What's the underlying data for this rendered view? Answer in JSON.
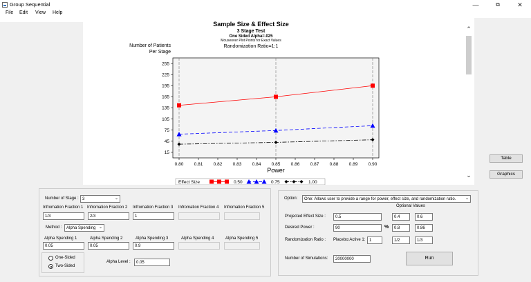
{
  "window": {
    "title": "Group Sequential",
    "icon": "app-icon"
  },
  "menu": [
    "File",
    "Edit",
    "View",
    "Help"
  ],
  "side_buttons": {
    "table": "Table",
    "graphics": "Graphics"
  },
  "chart_data": {
    "type": "line",
    "title": "Sample Size & Effect Size",
    "subtitle": "3 Stage Test",
    "subtitle2": "One Sided Alpha=.025",
    "note": "Mouseover Plot Points for Exact Values",
    "ratio_label": "Randomization Ratio=1:1",
    "ylabel_line1": "Number of Patients",
    "ylabel_line2": "Per Stage",
    "xlabel": "Power",
    "xlim": [
      0.8,
      0.9
    ],
    "ylim": [
      0,
      270
    ],
    "x_ticks": [
      "0.80",
      "0.81",
      "0.82",
      "0.83",
      "0.84",
      "0.85",
      "0.86",
      "0.87",
      "0.88",
      "0.89",
      "0.90"
    ],
    "y_ticks": [
      15,
      45,
      75,
      105,
      135,
      165,
      195,
      225,
      255
    ],
    "legend_title": "Effect Size",
    "legend_position": "bottom",
    "vertical_reference_lines": [
      0.8,
      0.85,
      0.9
    ],
    "x": [
      0.8,
      0.85,
      0.9
    ],
    "series": [
      {
        "name": "0.50",
        "color": "#ff0000",
        "marker": "square",
        "dash": "solid",
        "values": [
          142,
          165,
          195
        ]
      },
      {
        "name": "0.75",
        "color": "#0000ff",
        "marker": "triangle",
        "dash": "dashed",
        "values": [
          64,
          74,
          87
        ]
      },
      {
        "name": "1.00",
        "color": "#000000",
        "marker": "diamond",
        "dash": "dashdot",
        "values": [
          37,
          42,
          49
        ]
      }
    ]
  },
  "left_panel": {
    "num_stage_label": "Number of Stage :",
    "num_stage_value": "3",
    "info_fraction_labels": [
      "Infromation Fraction 1",
      "Infromation Fraction 2",
      "Infromation Fraction 3",
      "Infromation Fraction 4",
      "Infromation Fraction 5"
    ],
    "info_fraction_values": [
      "1/3",
      "2/3",
      "1",
      "",
      ""
    ],
    "method_label": "Method :",
    "method_value": "Alpha Spending",
    "alpha_spending_labels": [
      "Alpha Spending 1",
      "Alpha Spending 2",
      "Alpha Spending 3",
      "Alpha Spending 4",
      "Alpha Spending 5"
    ],
    "alpha_spending_values": [
      "0.05",
      "0.05",
      "0.9",
      "",
      ""
    ],
    "one_sided": "One-Sided",
    "two_sided": "Two-Sided",
    "alpha_level_label": "Alpha Level :",
    "alpha_level_value": "0.05"
  },
  "right_panel": {
    "option_label": "Option:",
    "option_value": "One: Allows user to provide a range for power, effect size, and randomization ratio.",
    "optional_values_label": "Optional Values",
    "effect_size_label": "Projected Effect Size :",
    "effect_size": "0.5",
    "effect_size_opt": [
      "0.4",
      "0.6"
    ],
    "power_label": "Desired Power :",
    "power": "90",
    "percent": "%",
    "power_opt": [
      "0.8",
      "0.86"
    ],
    "ratio_label": "Randomization Ratio :",
    "placebo_label": "Placebo:Active 1:",
    "ratio": "1",
    "ratio_opt": [
      "1/2",
      "1/3"
    ],
    "sims_label": "Number of Simulations:",
    "sims": "20000000",
    "run_label": "Run"
  }
}
